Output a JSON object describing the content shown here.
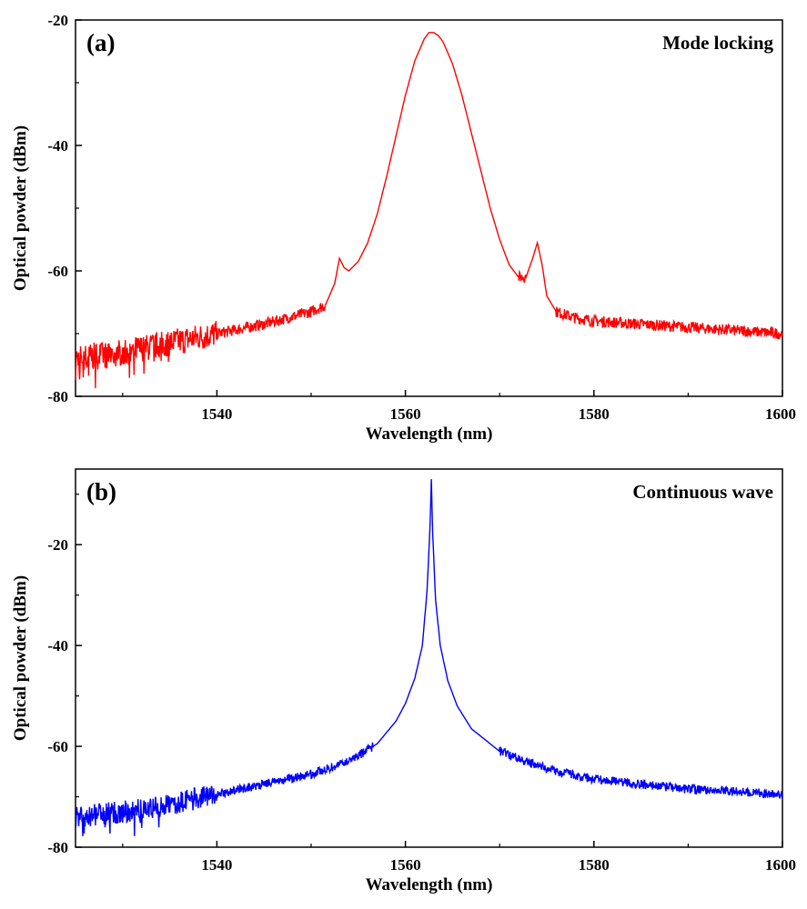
{
  "chart_data": [
    {
      "type": "line",
      "panel_label": "(a)",
      "annotation": "Mode locking",
      "xlabel": "Wavelength (nm)",
      "ylabel": "Optical powder (dBm)",
      "xlim": [
        1525,
        1600
      ],
      "ylim": [
        -80,
        -20
      ],
      "xticks": [
        1540,
        1560,
        1580,
        1600
      ],
      "yticks": [
        -80,
        -60,
        -40,
        -20
      ],
      "grid": false,
      "color": "#ff0000",
      "series": [
        {
          "x": [
            1525,
            1530,
            1535,
            1540,
            1545,
            1550,
            1551.5,
            1552.5,
            1553,
            1553.5,
            1554,
            1555,
            1556,
            1557,
            1558,
            1559,
            1560,
            1561,
            1562,
            1562.5,
            1563,
            1563.5,
            1564,
            1565,
            1566,
            1567,
            1568,
            1569,
            1570,
            1571,
            1572,
            1572.8,
            1573.5,
            1574,
            1574.5,
            1575,
            1576,
            1578,
            1580,
            1585,
            1590,
            1595,
            1600
          ],
          "y": [
            -74,
            -73,
            -71.5,
            -70,
            -68.5,
            -66.5,
            -65.5,
            -62,
            -58,
            -59.5,
            -60,
            -58.5,
            -55.5,
            -51,
            -45,
            -38.5,
            -32,
            -26.5,
            -23,
            -22,
            -22,
            -22.5,
            -23.5,
            -27,
            -32,
            -38,
            -44,
            -50,
            -55,
            -59,
            -61,
            -61,
            -58,
            -55.5,
            -59,
            -64,
            -66.5,
            -67.5,
            -68,
            -68.5,
            -69,
            -69.5,
            -70
          ]
        }
      ]
    },
    {
      "type": "line",
      "panel_label": "(b)",
      "annotation": "Continuous wave",
      "xlabel": "Wavelength (nm)",
      "ylabel": "Optical powder (dBm)",
      "xlim": [
        1525,
        1600
      ],
      "ylim": [
        -80,
        -5
      ],
      "xticks": [
        1540,
        1560,
        1580,
        1600
      ],
      "yticks": [
        -80,
        -60,
        -40,
        -20
      ],
      "grid": false,
      "color": "#0000ff",
      "series": [
        {
          "x": [
            1525,
            1530,
            1535,
            1540,
            1545,
            1550,
            1554,
            1557,
            1559,
            1560,
            1561,
            1561.8,
            1562.3,
            1562.6,
            1562.75,
            1562.9,
            1563.2,
            1563.7,
            1564.5,
            1565.5,
            1567,
            1570,
            1575,
            1580,
            1585,
            1590,
            1595,
            1600
          ],
          "y": [
            -74,
            -73,
            -71.5,
            -69.5,
            -67.5,
            -65.5,
            -63,
            -59.5,
            -55,
            -51.5,
            -46.5,
            -40,
            -29,
            -17,
            -7,
            -18,
            -31,
            -40,
            -47,
            -52,
            -56.5,
            -61,
            -64.5,
            -66.5,
            -67.5,
            -68.5,
            -69,
            -69.5
          ]
        }
      ]
    }
  ]
}
